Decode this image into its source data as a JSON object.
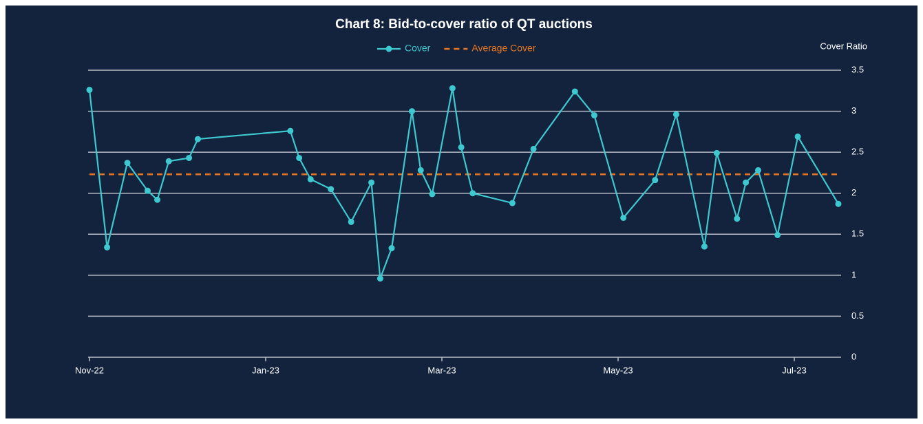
{
  "chart_data": {
    "type": "line",
    "title": "Chart 8: Bid-to-cover ratio of QT auctions",
    "y_axis_label": "Cover Ratio",
    "x": [
      0,
      0.2,
      0.43,
      0.66,
      0.77,
      0.9,
      1.13,
      1.23,
      2.28,
      2.38,
      2.51,
      2.74,
      2.97,
      3.2,
      3.3,
      3.43,
      3.66,
      3.76,
      3.89,
      4.12,
      4.22,
      4.35,
      4.8,
      5.04,
      5.51,
      5.73,
      6.06,
      6.42,
      6.66,
      6.98,
      7.12,
      7.35,
      7.45,
      7.59,
      7.81,
      8.04,
      8.5
    ],
    "series": [
      {
        "name": "Cover",
        "color": "#3ec9d0",
        "values": [
          3.26,
          1.34,
          2.37,
          2.03,
          1.92,
          2.39,
          2.43,
          2.66,
          2.76,
          2.43,
          2.17,
          2.05,
          1.65,
          2.13,
          0.96,
          1.33,
          3.0,
          2.28,
          1.99,
          3.28,
          2.56,
          2.0,
          1.88,
          2.54,
          3.24,
          2.95,
          1.7,
          2.16,
          2.96,
          1.35,
          2.49,
          1.69,
          2.13,
          2.28,
          1.49,
          2.69,
          1.87
        ]
      }
    ],
    "reference_lines": [
      {
        "name": "Average Cover",
        "value": 2.23,
        "color": "#e87722",
        "style": "dashed"
      }
    ],
    "xlim": [
      0,
      8.5
    ],
    "xticks": [
      {
        "value": 0,
        "label": "Nov-22"
      },
      {
        "value": 2,
        "label": "Jan-23"
      },
      {
        "value": 4,
        "label": "Mar-23"
      },
      {
        "value": 6,
        "label": "May-23"
      },
      {
        "value": 8,
        "label": "Jul-23"
      }
    ],
    "ylim": [
      0,
      3.5
    ],
    "yticks": [
      0,
      0.5,
      1,
      1.5,
      2,
      2.5,
      3,
      3.5
    ],
    "y_axis_side": "right",
    "grid": true
  }
}
